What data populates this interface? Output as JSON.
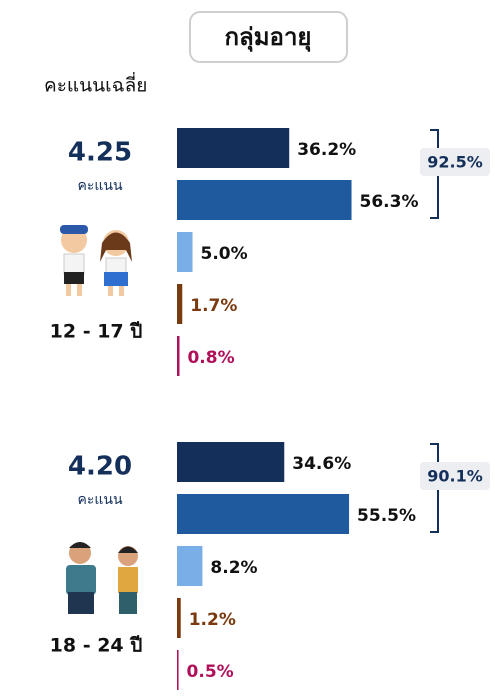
{
  "header": {
    "title": "กลุ่มอายุ",
    "subtitle": "คะแนนเฉลี่ย"
  },
  "chart_data": [
    {
      "type": "bar",
      "orientation": "horizontal",
      "score": 4.25,
      "score_unit": "คะแนน",
      "age_group": "12 - 17 ปี",
      "values": [
        36.2,
        56.3,
        5.0,
        1.7,
        0.8
      ],
      "value_labels": [
        "36.2%",
        "56.3%",
        "5.0%",
        "1.7%",
        "0.8%"
      ],
      "colors": [
        "#14305a",
        "#1f5a9e",
        "#7aaee6",
        "#7a3a10",
        "#b0105a"
      ],
      "label_colors": [
        "#111111",
        "#111111",
        "#111111",
        "#7a3a10",
        "#b0105a"
      ],
      "top2_total": {
        "value": 92.5,
        "label": "92.5%"
      },
      "xlim": [
        0,
        100
      ]
    },
    {
      "type": "bar",
      "orientation": "horizontal",
      "score": {
        "value": 4.2,
        "label": "4.20"
      },
      "score_unit": "คะแนน",
      "age_group": "18 - 24 ปี",
      "values": [
        34.6,
        55.5,
        8.2,
        1.2,
        0.5
      ],
      "value_labels": [
        "34.6%",
        "55.5%",
        "8.2%",
        "1.2%",
        "0.5%"
      ],
      "colors": [
        "#14305a",
        "#1f5a9e",
        "#7aaee6",
        "#7a3a10",
        "#b0105a"
      ],
      "label_colors": [
        "#111111",
        "#111111",
        "#111111",
        "#7a3a10",
        "#b0105a"
      ],
      "top2_total": {
        "value": 90.1,
        "label": "90.1%"
      },
      "xlim": [
        0,
        100
      ]
    }
  ]
}
